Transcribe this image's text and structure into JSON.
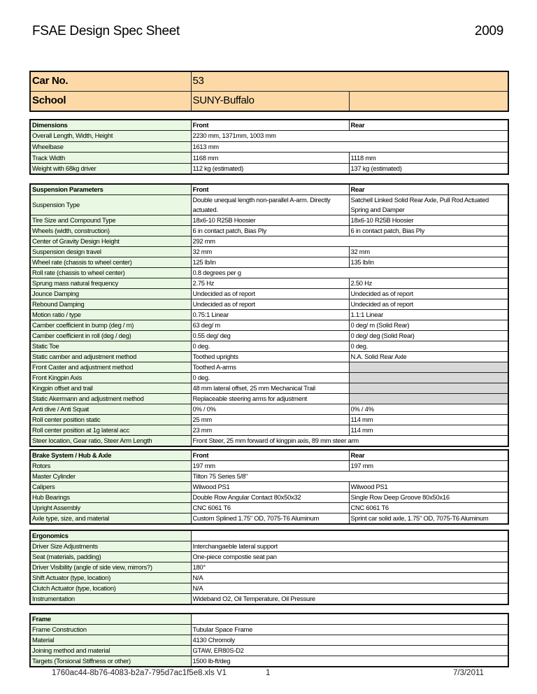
{
  "header": {
    "title": "FSAE Design Spec Sheet",
    "year": "2009"
  },
  "colors": {
    "label_bg": "#e8f8e2",
    "car_bg": "#fdd9a8",
    "na_cell": "#d8d8d8"
  },
  "car": {
    "rows": [
      {
        "label": "Car No.",
        "front": "53",
        "span": true
      },
      {
        "label": "School",
        "front": "SUNY-Buffalo",
        "rear": ""
      }
    ]
  },
  "tables": [
    {
      "name": "dimensions",
      "rows": [
        {
          "label": "Dimensions",
          "front": "Front",
          "rear": "Rear",
          "hdr": true
        },
        {
          "label": "Overall Length, Width, Height",
          "front": "2230 mm, 1371mm, 1003 mm",
          "span": true
        },
        {
          "label": "Wheelbase",
          "front": "1613 mm",
          "span": true
        },
        {
          "label": "Track Width",
          "front": "1168 mm",
          "rear": "1118 mm"
        },
        {
          "label": "Weight with 68kg driver",
          "front": "112 kg (estimated)",
          "rear": "137 kg (estimated)"
        }
      ]
    },
    {
      "name": "suspension",
      "rows": [
        {
          "label": "Suspension Parameters",
          "front": "Front",
          "rear": "Rear",
          "hdr": true
        },
        {
          "label": "Suspension Type",
          "front": "Double unequal length non-parallel A-arm.  Directly actuated.",
          "rear": "Satchell Linked Solid Rear Axle, Pull Rod Actuated Spring and Damper",
          "tall": true
        },
        {
          "label": "Tire Size and Compound Type",
          "front": "18x6-10 R25B Hoosier",
          "rear": "18x6-10 R25B Hoosier"
        },
        {
          "label": "Wheels (width, construction)",
          "front": "6 in contact patch, Bias Ply",
          "rear": "6 in contact patch, Bias Ply"
        },
        {
          "label": "Center of Gravity Design Height",
          "front": "292 mm",
          "span": true
        },
        {
          "label": "Suspension design travel",
          "front": "32 mm",
          "rear": "32 mm"
        },
        {
          "label": "Wheel rate (chassis to wheel center)",
          "front": "125 lb/in",
          "rear": "135 lb/in"
        },
        {
          "label": "Roll rate (chassis to wheel center)",
          "front": "0.8 degrees per g",
          "span": true
        },
        {
          "label": "Sprung mass natural frequency",
          "front": "2.75 Hz",
          "rear": "2.50 Hz"
        },
        {
          "label": "Jounce Damping",
          "front": "Undecided as of report",
          "rear": "Undecided as of report"
        },
        {
          "label": "Rebound Damping",
          "front": "Undecided as of report",
          "rear": "Undecided as of report"
        },
        {
          "label": "Motion ratio / type",
          "front": "0.75:1 Linear",
          "rear": "1.1:1 Linear"
        },
        {
          "label": "Camber coefficient in bump (deg / m)",
          "front": "63 deg/ m",
          "rear": "0 deg/ m (Solid Rear)"
        },
        {
          "label": "Camber coefficient in roll (deg / deg)",
          "front": "0.55 deg/ deg",
          "rear": "0 deg/ deg (Solid Rear)"
        },
        {
          "label": "Static Toe",
          "front": "0 deg.",
          "rear": "0 deg."
        },
        {
          "label": "Static camber and adjustment method",
          "front": "Toothed uprights",
          "rear": "N.A. Solid Rear Axle"
        },
        {
          "label": "Front Caster and adjustment method",
          "front": "Toothed A-arms",
          "rear": "",
          "grey": true
        },
        {
          "label": "Front Kingpin Axis",
          "front": "0 deg.",
          "rear": "",
          "grey": true
        },
        {
          "label": "Kingpin offset and trail",
          "front": "48 mm lateral offset, 25 mm Mechanical Trail",
          "rear": "",
          "grey": true
        },
        {
          "label": "Static Akermann and adjustment method",
          "front": "Replaceable steering arms for adjustment",
          "rear": "",
          "grey": true
        },
        {
          "label": "Anti dive / Anti Squat",
          "front": "0% / 0%",
          "rear": "0% / 4%"
        },
        {
          "label": "Roll center position static",
          "front": "25 mm",
          "rear": "114 mm"
        },
        {
          "label": "Roll center position at 1g lateral acc",
          "front": "23 mm",
          "rear": "114 mm"
        },
        {
          "label": "Steer location, Gear ratio, Steer Arm Length",
          "front": "Front Steer, 25 mm forward of kingpin axis, 89 mm steer arm",
          "span": true
        }
      ]
    },
    {
      "name": "brakes",
      "rows": [
        {
          "label": "Brake System / Hub & Axle",
          "front": "Front",
          "rear": "Rear",
          "hdr": true
        },
        {
          "label": "Rotors",
          "front": "197 mm",
          "rear": "197 mm"
        },
        {
          "label": "Master Cylinder",
          "front": "Tilton 75 Series 5/8\"",
          "span": true
        },
        {
          "label": "Calipers",
          "front": "Wilwood PS1",
          "rear": "Wilwood PS1"
        },
        {
          "label": "Hub Bearings",
          "front": "Double Row Angular Contact 80x50x32",
          "rear": "Single Row Deep Groove 80x50x16"
        },
        {
          "label": "Upright Assembly",
          "front": "CNC 6061 T6",
          "rear": "CNC 6061 T6"
        },
        {
          "label": "Axle type, size, and material",
          "front": "Custom Splined 1.75\" OD, 7075-T6 Aluminum",
          "rear": "Sprint car solid axle, 1.75\" OD, 7075-T6 Aluminum"
        }
      ]
    },
    {
      "name": "ergonomics",
      "rows": [
        {
          "label": "Ergonomics",
          "front": "",
          "span": true,
          "hdr": true
        },
        {
          "label": "Driver Size Adjustments",
          "front": "Interchangaeble  lateral support",
          "span": true
        },
        {
          "label": "Seat (materials, padding)",
          "front": "One-piece compostie seat pan",
          "span": true
        },
        {
          "label": "Driver Visibility (angle of side view, mirrors?)",
          "front": "180°",
          "span": true
        },
        {
          "label": "Shift Actuator (type, location)",
          "front": "N/A",
          "span": true
        },
        {
          "label": "Clutch Actuator (type, location)",
          "front": "N/A",
          "span": true
        },
        {
          "label": "Instrumentation",
          "front": "Wideband O2, Oil Temperature, Oil Pressure",
          "span": true
        }
      ]
    },
    {
      "name": "frame",
      "rows": [
        {
          "label": "Frame",
          "front": "",
          "span": true,
          "hdr": true
        },
        {
          "label": "Frame Construction",
          "front": "Tubular Space Frame",
          "span": true
        },
        {
          "label": "Material",
          "front": "4130 Chromoly",
          "span": true
        },
        {
          "label": "Joining method and material",
          "front": "GTAW, ER80S-D2",
          "span": true
        },
        {
          "label": "Targets (Torsional Stiffness or other)",
          "front": "1500 lb-ft/deg",
          "span": true
        }
      ]
    }
  ],
  "footer": {
    "file": "1760ac44-8b76-4083-b2a7-795d7ac1f5e8.xls V1",
    "page": "1",
    "date": "7/3/2011"
  }
}
